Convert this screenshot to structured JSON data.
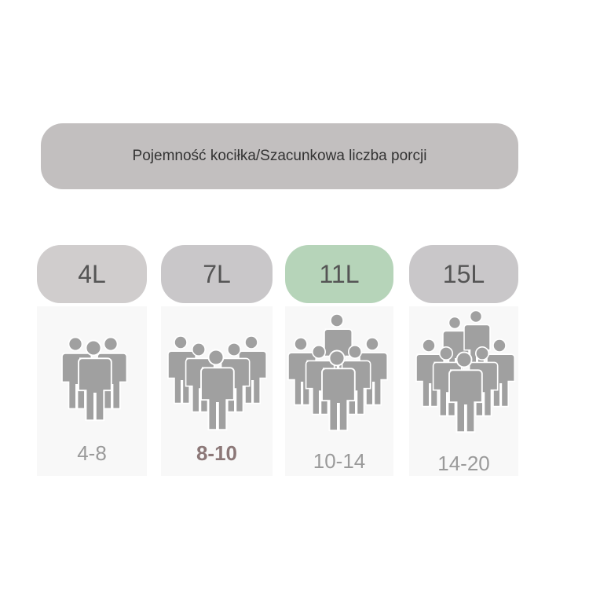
{
  "header": "Pojemność kociłka/Szacunkowa liczba porcji",
  "items": [
    {
      "size": "4L",
      "servings": "4-8"
    },
    {
      "size": "7L",
      "servings": "8-10"
    },
    {
      "size": "11L",
      "servings": "10-14"
    },
    {
      "size": "15L",
      "servings": "14-20"
    }
  ]
}
